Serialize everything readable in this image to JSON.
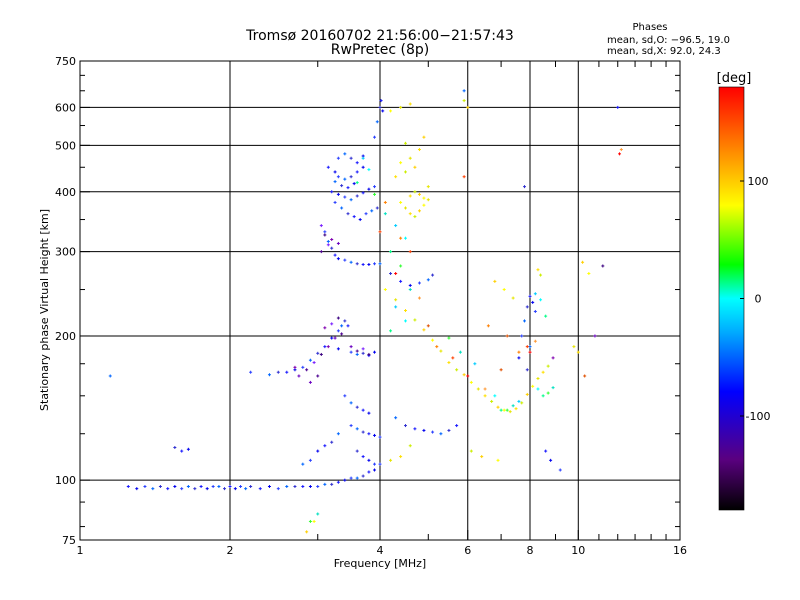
{
  "chart_data": {
    "type": "scatter",
    "title": "Tromsø 20160702 21:56:00−21:57:43",
    "subtitle": "RwPretec (8p)",
    "xlabel": "Frequency [MHz]",
    "ylabel": "Stationary phase Virtual Height [km]",
    "x_scale": "log",
    "y_scale": "log",
    "xlim": [
      1,
      16
    ],
    "ylim": [
      75,
      750
    ],
    "x_ticks": [
      1,
      2,
      4,
      6,
      8,
      10,
      16
    ],
    "x_tick_labels": [
      "1",
      "2",
      "4",
      "6",
      "8",
      "10",
      "16"
    ],
    "y_ticks": [
      75,
      100,
      200,
      300,
      400,
      500,
      600,
      750
    ],
    "y_tick_labels": [
      "75",
      "100",
      "200",
      "300",
      "400",
      "500",
      "600",
      "750"
    ],
    "x_grid": [
      2,
      4,
      6,
      8,
      10
    ],
    "y_grid": [
      100,
      200,
      300,
      400,
      500,
      600
    ],
    "grid": true,
    "legend": {
      "title": "Phases",
      "lines": [
        "mean, sd,O: −96.5, 19.0",
        "mean, sd,X:  92.0, 24.3"
      ],
      "position": "top-right"
    },
    "colorbar": {
      "label": "[deg]",
      "range": [
        -180,
        180
      ],
      "ticks": [
        100,
        0,
        -100
      ],
      "tick_labels": [
        "100",
        "0",
        "-100"
      ],
      "colors": [
        "#000000",
        "#5a0080",
        "#0000ff",
        "#00aaff",
        "#00ffff",
        "#00ff00",
        "#ffff00",
        "#ff8000",
        "#ff0000"
      ]
    },
    "series": [
      {
        "phase": "blue",
        "points": [
          [
            1.25,
            97
          ],
          [
            1.3,
            96
          ],
          [
            1.35,
            97
          ],
          [
            1.4,
            96
          ],
          [
            1.45,
            97
          ],
          [
            1.5,
            96
          ],
          [
            1.55,
            97
          ],
          [
            1.6,
            96
          ],
          [
            1.65,
            97
          ],
          [
            1.7,
            96
          ],
          [
            1.75,
            97
          ],
          [
            1.8,
            96
          ],
          [
            1.85,
            97
          ],
          [
            1.9,
            97
          ],
          [
            1.95,
            96
          ],
          [
            2.0,
            97
          ],
          [
            2.05,
            96
          ],
          [
            2.1,
            97
          ],
          [
            2.15,
            96
          ],
          [
            2.2,
            97
          ],
          [
            2.3,
            96
          ],
          [
            2.4,
            97
          ],
          [
            2.5,
            96
          ],
          [
            2.6,
            97
          ],
          [
            2.7,
            97
          ],
          [
            2.8,
            97
          ],
          [
            2.9,
            97
          ],
          [
            3.0,
            97
          ],
          [
            3.1,
            98
          ],
          [
            3.2,
            98
          ],
          [
            3.3,
            99
          ],
          [
            3.4,
            100
          ],
          [
            3.5,
            101
          ],
          [
            3.6,
            101
          ],
          [
            3.7,
            102
          ],
          [
            3.8,
            104
          ],
          [
            3.9,
            105
          ],
          [
            4.0,
            108
          ],
          [
            1.15,
            165
          ],
          [
            1.55,
            117
          ],
          [
            1.6,
            115
          ],
          [
            1.65,
            116
          ],
          [
            2.2,
            168
          ],
          [
            2.4,
            166
          ],
          [
            2.5,
            168
          ],
          [
            2.6,
            168
          ],
          [
            2.7,
            170
          ],
          [
            2.8,
            172
          ],
          [
            2.9,
            178
          ],
          [
            3.0,
            184
          ],
          [
            3.1,
            190
          ],
          [
            3.2,
            198
          ],
          [
            3.3,
            205
          ],
          [
            3.35,
            210
          ],
          [
            3.4,
            215
          ],
          [
            3.45,
            210
          ],
          [
            3.3,
            188
          ],
          [
            3.5,
            185
          ],
          [
            3.6,
            183
          ],
          [
            3.7,
            184
          ],
          [
            3.8,
            182
          ],
          [
            3.9,
            185
          ],
          [
            3.1,
            330
          ],
          [
            3.15,
            315
          ],
          [
            3.2,
            305
          ],
          [
            3.25,
            295
          ],
          [
            3.3,
            290
          ],
          [
            3.4,
            288
          ],
          [
            3.5,
            285
          ],
          [
            3.6,
            283
          ],
          [
            3.7,
            282
          ],
          [
            3.8,
            282
          ],
          [
            3.9,
            283
          ],
          [
            4.0,
            283
          ],
          [
            4.2,
            270
          ],
          [
            4.4,
            260
          ],
          [
            4.6,
            255
          ],
          [
            4.8,
            258
          ],
          [
            5.0,
            262
          ],
          [
            5.1,
            268
          ],
          [
            3.15,
            450
          ],
          [
            3.25,
            440
          ],
          [
            3.3,
            430
          ],
          [
            3.4,
            425
          ],
          [
            3.5,
            430
          ],
          [
            3.6,
            440
          ],
          [
            3.7,
            450
          ],
          [
            3.3,
            470
          ],
          [
            3.4,
            480
          ],
          [
            3.5,
            470
          ],
          [
            3.6,
            460
          ],
          [
            3.7,
            475
          ],
          [
            3.25,
            380
          ],
          [
            3.35,
            370
          ],
          [
            3.45,
            360
          ],
          [
            3.55,
            355
          ],
          [
            3.65,
            350
          ],
          [
            3.75,
            360
          ],
          [
            3.85,
            365
          ],
          [
            3.95,
            370
          ],
          [
            3.2,
            400
          ],
          [
            3.3,
            395
          ],
          [
            3.4,
            390
          ],
          [
            3.5,
            385
          ],
          [
            3.6,
            392
          ],
          [
            3.7,
            398
          ],
          [
            3.8,
            405
          ],
          [
            3.9,
            410
          ],
          [
            3.25,
            420
          ],
          [
            3.35,
            412
          ],
          [
            3.45,
            408
          ],
          [
            3.55,
            416
          ],
          [
            3.9,
            520
          ],
          [
            3.95,
            560
          ],
          [
            4.0,
            600
          ],
          [
            4.02,
            620
          ],
          [
            4.05,
            590
          ],
          [
            3.4,
            150
          ],
          [
            3.5,
            145
          ],
          [
            3.6,
            142
          ],
          [
            3.7,
            140
          ],
          [
            3.8,
            138
          ],
          [
            3.5,
            130
          ],
          [
            3.6,
            128
          ],
          [
            3.7,
            126
          ],
          [
            3.8,
            125
          ],
          [
            3.9,
            124
          ],
          [
            4.0,
            123
          ],
          [
            3.3,
            125
          ],
          [
            3.2,
            120
          ],
          [
            3.1,
            118
          ],
          [
            3.0,
            115
          ],
          [
            2.9,
            110
          ],
          [
            2.8,
            108
          ],
          [
            3.6,
            115
          ],
          [
            3.7,
            112
          ],
          [
            3.8,
            110
          ],
          [
            3.9,
            108
          ],
          [
            4.3,
            135
          ],
          [
            4.5,
            130
          ],
          [
            4.7,
            128
          ],
          [
            4.9,
            127
          ],
          [
            5.1,
            126
          ],
          [
            5.3,
            125
          ],
          [
            5.5,
            127
          ],
          [
            5.7,
            130
          ],
          [
            7.6,
            180
          ],
          [
            7.7,
            200
          ],
          [
            7.8,
            215
          ],
          [
            7.9,
            230
          ],
          [
            8.0,
            242
          ],
          [
            8.1,
            235
          ],
          [
            8.2,
            225
          ],
          [
            8.0,
            190
          ],
          [
            7.9,
            170
          ],
          [
            8.6,
            115
          ],
          [
            8.8,
            110
          ],
          [
            9.2,
            105
          ],
          [
            5.9,
            650
          ],
          [
            7.8,
            410
          ],
          [
            12.0,
            600
          ]
        ]
      },
      {
        "phase": "cyan-green",
        "points": [
          [
            3.7,
            470
          ],
          [
            3.8,
            445
          ],
          [
            3.6,
            418
          ],
          [
            3.9,
            395
          ],
          [
            4.1,
            360
          ],
          [
            4.3,
            340
          ],
          [
            4.5,
            320
          ],
          [
            4.2,
            300
          ],
          [
            4.4,
            280
          ],
          [
            4.6,
            250
          ],
          [
            4.3,
            230
          ],
          [
            4.5,
            215
          ],
          [
            4.2,
            205
          ],
          [
            5.5,
            198
          ],
          [
            5.8,
            185
          ],
          [
            6.2,
            175
          ],
          [
            6.8,
            150
          ],
          [
            7.0,
            140
          ],
          [
            7.2,
            140
          ],
          [
            7.4,
            143
          ],
          [
            7.6,
            146
          ],
          [
            8.3,
            155
          ],
          [
            8.5,
            150
          ],
          [
            8.7,
            152
          ],
          [
            8.9,
            156
          ],
          [
            8.2,
            245
          ],
          [
            8.4,
            238
          ],
          [
            8.6,
            220
          ],
          [
            2.9,
            82
          ],
          [
            3.0,
            85
          ]
        ]
      },
      {
        "phase": "yellow",
        "points": [
          [
            4.4,
            380
          ],
          [
            4.5,
            370
          ],
          [
            4.6,
            360
          ],
          [
            4.7,
            355
          ],
          [
            4.8,
            365
          ],
          [
            4.9,
            375
          ],
          [
            5.0,
            385
          ],
          [
            4.6,
            392
          ],
          [
            4.7,
            400
          ],
          [
            4.8,
            395
          ],
          [
            4.9,
            388
          ],
          [
            5.0,
            410
          ],
          [
            4.3,
            430
          ],
          [
            4.5,
            440
          ],
          [
            4.7,
            450
          ],
          [
            4.4,
            460
          ],
          [
            4.6,
            470
          ],
          [
            4.8,
            490
          ],
          [
            4.5,
            505
          ],
          [
            4.9,
            520
          ],
          [
            4.2,
            590
          ],
          [
            4.4,
            600
          ],
          [
            4.6,
            610
          ],
          [
            5.9,
            620
          ],
          [
            6.0,
            600
          ],
          [
            4.1,
            250
          ],
          [
            4.3,
            238
          ],
          [
            4.5,
            226
          ],
          [
            4.7,
            216
          ],
          [
            4.9,
            206
          ],
          [
            5.1,
            196
          ],
          [
            5.3,
            186
          ],
          [
            5.5,
            176
          ],
          [
            5.7,
            170
          ],
          [
            5.9,
            166
          ],
          [
            6.1,
            160
          ],
          [
            6.3,
            155
          ],
          [
            6.5,
            150
          ],
          [
            6.7,
            146
          ],
          [
            6.9,
            142
          ],
          [
            7.1,
            140
          ],
          [
            7.3,
            139
          ],
          [
            7.5,
            141
          ],
          [
            7.7,
            145
          ],
          [
            7.9,
            151
          ],
          [
            8.1,
            157
          ],
          [
            8.3,
            163
          ],
          [
            8.5,
            168
          ],
          [
            8.7,
            173
          ],
          [
            6.8,
            260
          ],
          [
            7.1,
            250
          ],
          [
            7.4,
            240
          ],
          [
            8.3,
            275
          ],
          [
            8.4,
            268
          ],
          [
            10.2,
            285
          ],
          [
            10.5,
            270
          ],
          [
            9.8,
            190
          ],
          [
            10.0,
            185
          ],
          [
            6.1,
            115
          ],
          [
            6.4,
            112
          ],
          [
            6.9,
            110
          ],
          [
            4.2,
            110
          ],
          [
            4.4,
            112
          ],
          [
            4.6,
            118
          ],
          [
            2.85,
            78
          ],
          [
            2.95,
            82
          ]
        ]
      },
      {
        "phase": "orange-red",
        "points": [
          [
            4.4,
            320
          ],
          [
            4.6,
            300
          ],
          [
            4.3,
            270
          ],
          [
            4.8,
            240
          ],
          [
            5.0,
            210
          ],
          [
            5.2,
            190
          ],
          [
            5.6,
            180
          ],
          [
            6.0,
            165
          ],
          [
            6.5,
            155
          ],
          [
            7.0,
            170
          ],
          [
            7.6,
            185
          ],
          [
            7.9,
            190
          ],
          [
            8.0,
            185
          ],
          [
            8.2,
            195
          ],
          [
            7.2,
            200
          ],
          [
            6.6,
            210
          ],
          [
            5.9,
            430
          ],
          [
            12.1,
            480
          ],
          [
            12.2,
            490
          ],
          [
            10.3,
            165
          ],
          [
            4.1,
            380
          ],
          [
            4.0,
            330
          ]
        ]
      },
      {
        "phase": "purple",
        "points": [
          [
            2.75,
            165
          ],
          [
            2.85,
            170
          ],
          [
            2.95,
            176
          ],
          [
            3.05,
            183
          ],
          [
            3.15,
            190
          ],
          [
            3.25,
            198
          ],
          [
            3.35,
            202
          ],
          [
            3.2,
            212
          ],
          [
            3.3,
            218
          ],
          [
            3.1,
            208
          ],
          [
            3.5,
            190
          ],
          [
            3.6,
            186
          ],
          [
            3.7,
            188
          ],
          [
            3.8,
            183
          ],
          [
            2.7,
            172
          ],
          [
            2.9,
            160
          ],
          [
            3.0,
            165
          ],
          [
            3.05,
            340
          ],
          [
            3.1,
            325
          ],
          [
            3.2,
            318
          ],
          [
            3.3,
            312
          ],
          [
            3.05,
            300
          ],
          [
            3.15,
            310
          ],
          [
            11.2,
            280
          ],
          [
            8.9,
            180
          ],
          [
            10.8,
            200
          ]
        ]
      }
    ]
  }
}
